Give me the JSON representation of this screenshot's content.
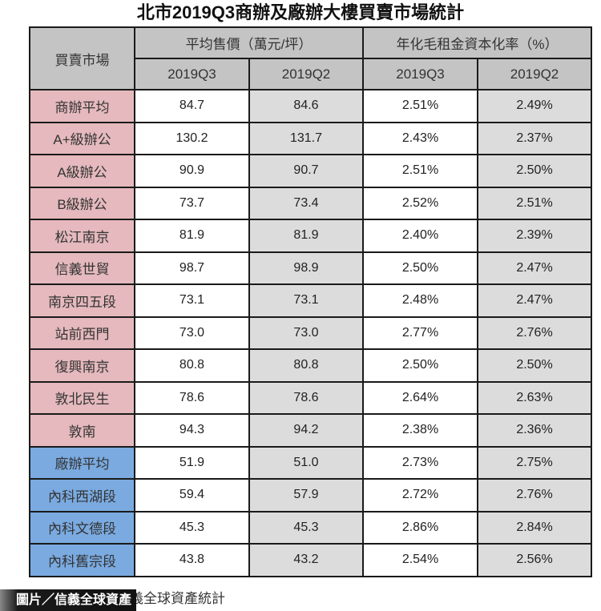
{
  "title": "北市2019Q3商辦及廠辦大樓買賣市場統計",
  "table": {
    "row_header": "買賣市場",
    "group_headers": [
      "平均售價（萬元/坪）",
      "年化毛租金資本化率（%）"
    ],
    "sub_headers": [
      "2019Q3",
      "2019Q2",
      "2019Q3",
      "2019Q2"
    ],
    "rows": [
      {
        "name": "商辦平均",
        "category": "office",
        "price_q3": "84.7",
        "price_q2": "84.6",
        "cap_q3": "2.51%",
        "cap_q2": "2.49%"
      },
      {
        "name": "A+級辦公",
        "category": "office",
        "price_q3": "130.2",
        "price_q2": "131.7",
        "cap_q3": "2.43%",
        "cap_q2": "2.37%"
      },
      {
        "name": "A級辦公",
        "category": "office",
        "price_q3": "90.9",
        "price_q2": "90.7",
        "cap_q3": "2.51%",
        "cap_q2": "2.50%"
      },
      {
        "name": "B級辦公",
        "category": "office",
        "price_q3": "73.7",
        "price_q2": "73.4",
        "cap_q3": "2.52%",
        "cap_q2": "2.51%"
      },
      {
        "name": "松江南京",
        "category": "office",
        "price_q3": "81.9",
        "price_q2": "81.9",
        "cap_q3": "2.40%",
        "cap_q2": "2.39%"
      },
      {
        "name": "信義世貿",
        "category": "office",
        "price_q3": "98.7",
        "price_q2": "98.9",
        "cap_q3": "2.50%",
        "cap_q2": "2.47%"
      },
      {
        "name": "南京四五段",
        "category": "office",
        "price_q3": "73.1",
        "price_q2": "73.1",
        "cap_q3": "2.48%",
        "cap_q2": "2.47%"
      },
      {
        "name": "站前西門",
        "category": "office",
        "price_q3": "73.0",
        "price_q2": "73.0",
        "cap_q3": "2.77%",
        "cap_q2": "2.76%"
      },
      {
        "name": "復興南京",
        "category": "office",
        "price_q3": "80.8",
        "price_q2": "80.8",
        "cap_q3": "2.50%",
        "cap_q2": "2.50%"
      },
      {
        "name": "敦北民生",
        "category": "office",
        "price_q3": "78.6",
        "price_q2": "78.6",
        "cap_q3": "2.64%",
        "cap_q2": "2.63%"
      },
      {
        "name": "敦南",
        "category": "office",
        "price_q3": "94.3",
        "price_q2": "94.2",
        "cap_q3": "2.38%",
        "cap_q2": "2.36%"
      },
      {
        "name": "廠辦平均",
        "category": "industrial",
        "price_q3": "51.9",
        "price_q2": "51.0",
        "cap_q3": "2.73%",
        "cap_q2": "2.75%"
      },
      {
        "name": "內科西湖段",
        "category": "industrial",
        "price_q3": "59.4",
        "price_q2": "57.9",
        "cap_q3": "2.72%",
        "cap_q2": "2.76%"
      },
      {
        "name": "內科文德段",
        "category": "industrial",
        "price_q3": "45.3",
        "price_q2": "45.3",
        "cap_q3": "2.86%",
        "cap_q2": "2.84%"
      },
      {
        "name": "內科舊宗段",
        "category": "industrial",
        "price_q3": "43.8",
        "price_q2": "43.2",
        "cap_q3": "2.54%",
        "cap_q2": "2.56%"
      }
    ]
  },
  "caption": "資料來源：信義全球資產統計",
  "photo_credit": "圖片／信義全球資產",
  "colors": {
    "office_label_bg": "#e5b9bd",
    "industrial_label_bg": "#7aaae0",
    "header_bg": "#c4c4c4",
    "q2_col_bg": "#dcdcdc"
  }
}
